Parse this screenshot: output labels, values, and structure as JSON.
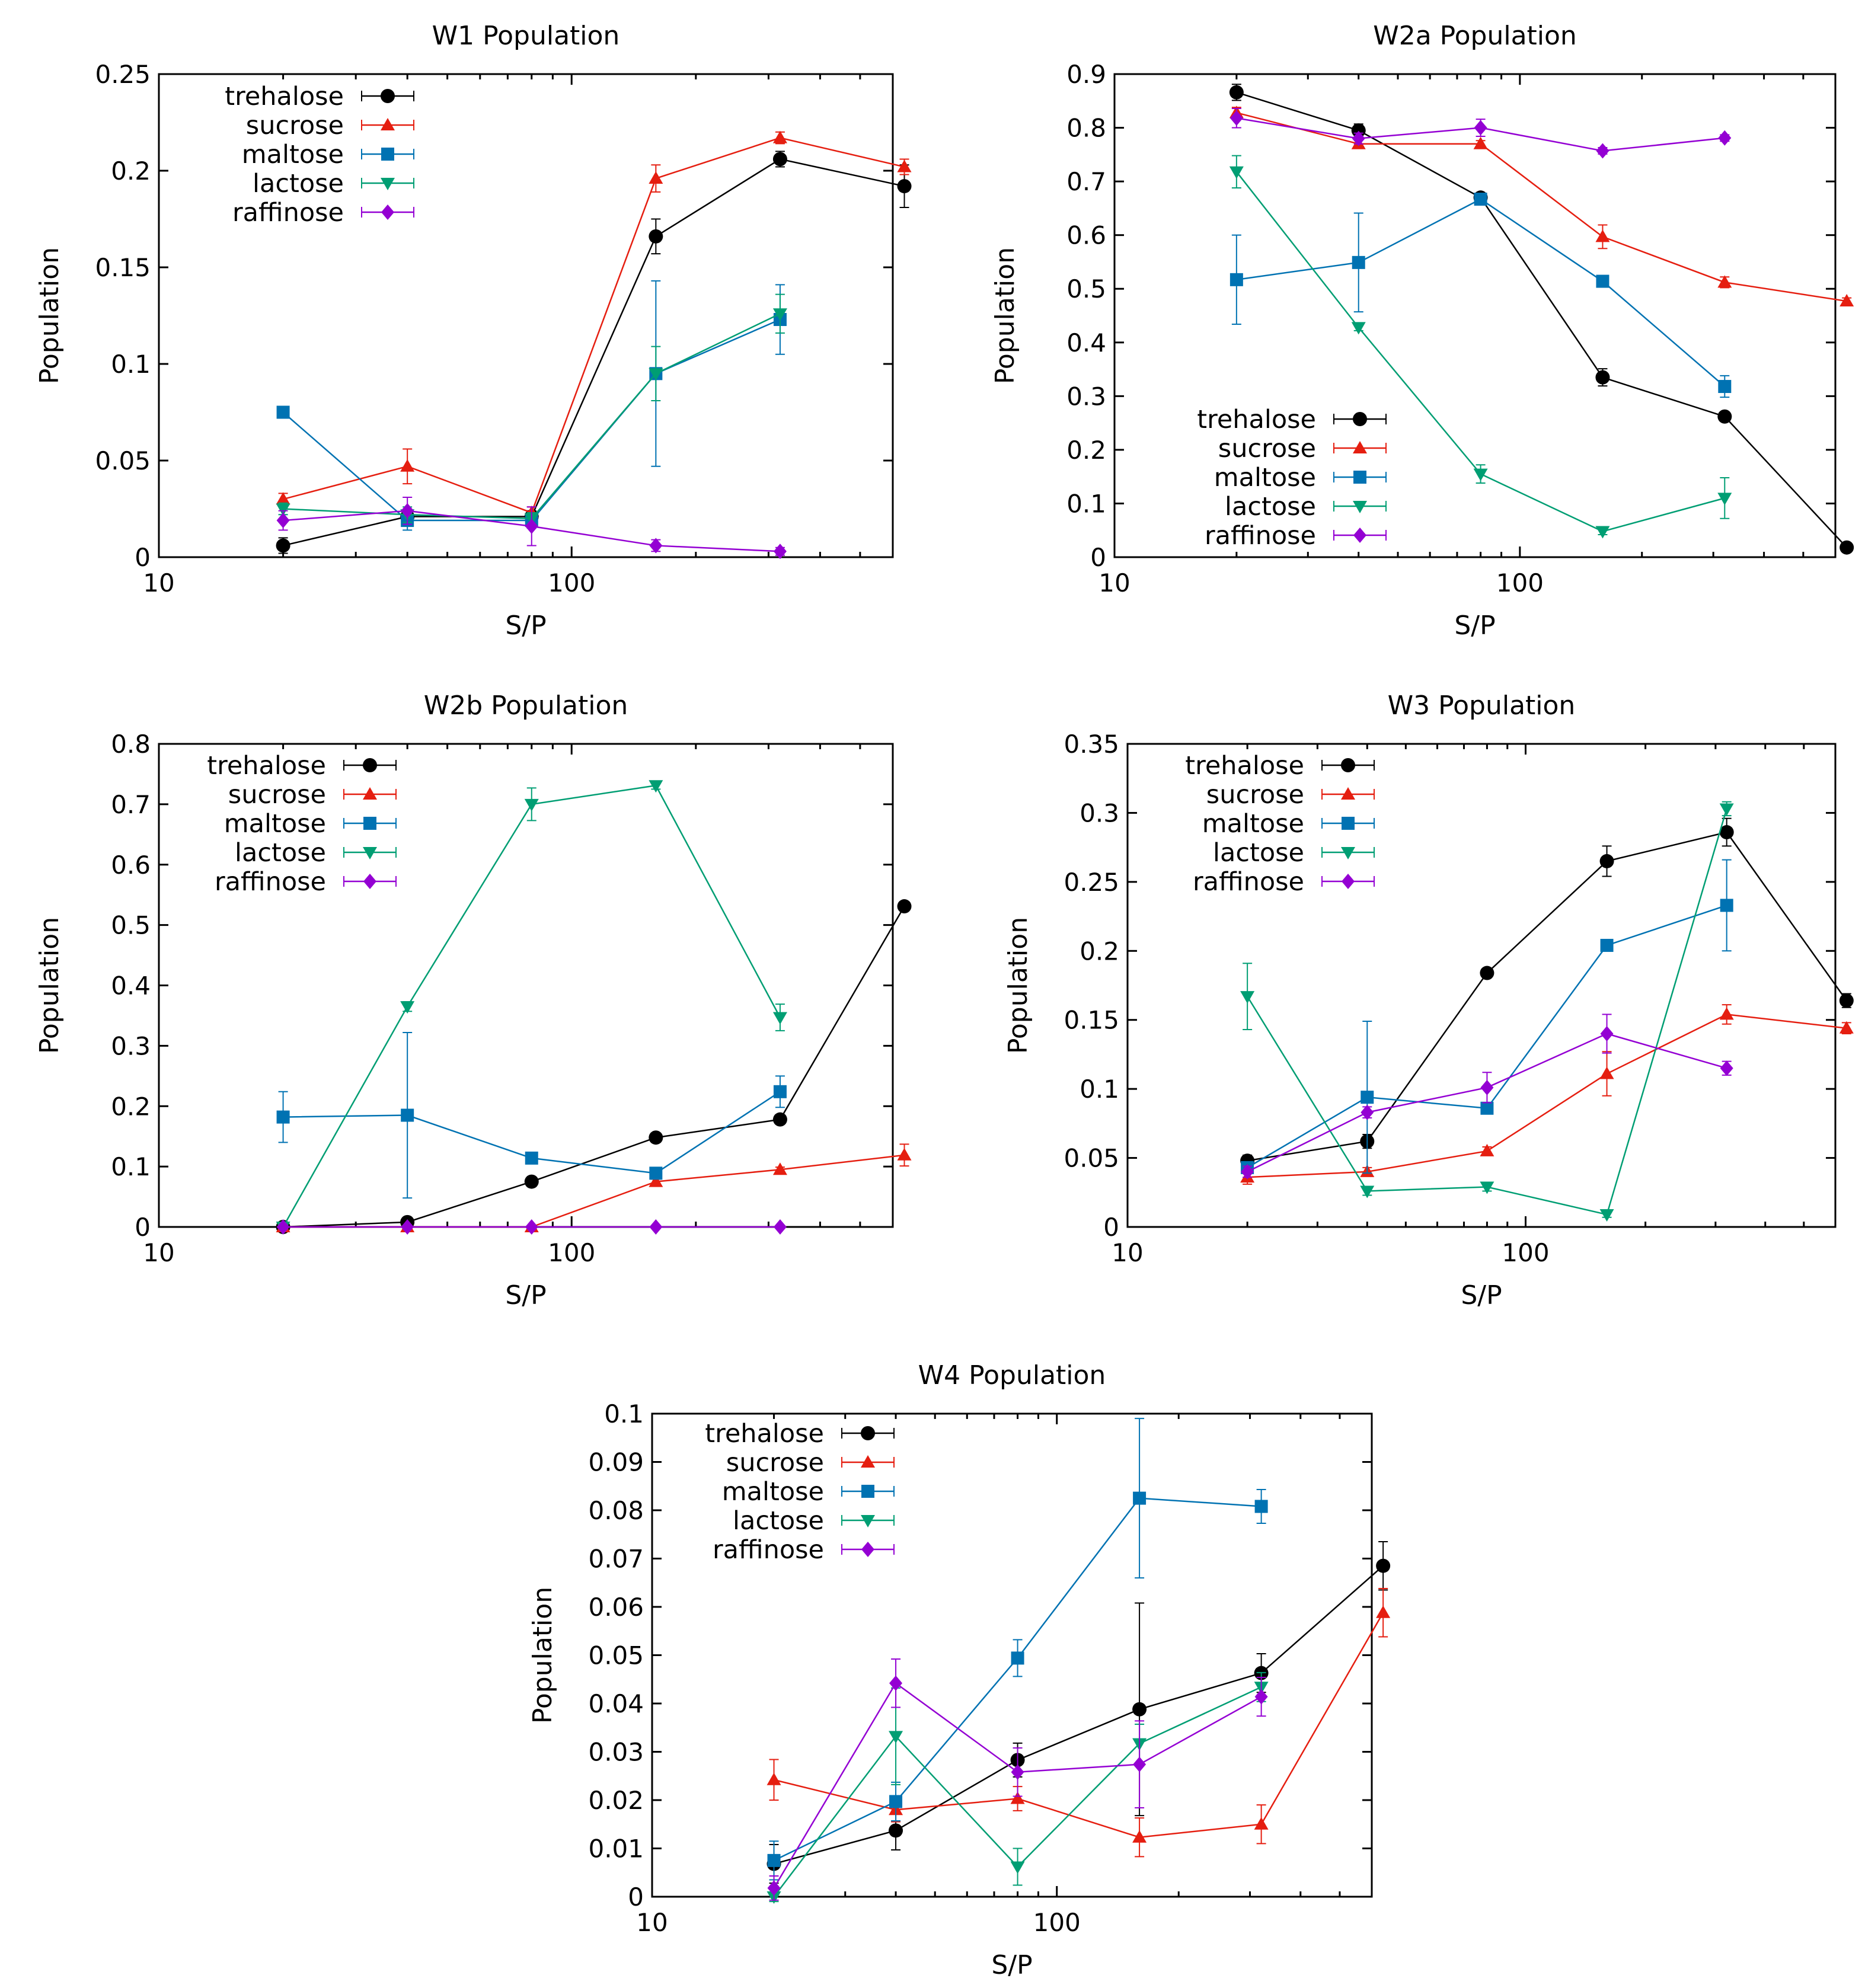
{
  "chart_data": [
    {
      "type": "line",
      "title": "W1 Population",
      "xlabel": "S/P",
      "ylabel": "Population",
      "xscale": "log",
      "xlim": [
        10,
        600
      ],
      "ylim": [
        0,
        0.25
      ],
      "yticks": [
        0,
        0.05,
        0.1,
        0.15,
        0.2,
        0.25
      ],
      "ytick_labels": [
        "0",
        "0.05",
        "0.1",
        "0.15",
        "0.2",
        "0.25"
      ],
      "xticks": [
        10,
        100
      ],
      "xtick_labels": [
        "10",
        "100"
      ],
      "legend_position": "top-left",
      "series": [
        {
          "name": "trehalose",
          "x": [
            20,
            40,
            80,
            160,
            320,
            640
          ],
          "values": [
            0.006,
            0.021,
            0.021,
            0.166,
            0.206,
            0.192
          ],
          "errors": [
            0.004,
            0.003,
            0.003,
            0.009,
            0.004,
            0.011
          ]
        },
        {
          "name": "sucrose",
          "x": [
            20,
            40,
            80,
            160,
            320,
            640
          ],
          "values": [
            0.03,
            0.047,
            0.023,
            0.196,
            0.217,
            0.202
          ],
          "errors": [
            0.003,
            0.009,
            0.003,
            0.007,
            0.003,
            0.004
          ]
        },
        {
          "name": "maltose",
          "x": [
            20,
            40,
            80,
            160,
            320
          ],
          "values": [
            0.075,
            0.019,
            0.019,
            0.095,
            0.123
          ],
          "errors": [
            0.003,
            0.005,
            0.004,
            0.048,
            0.018
          ]
        },
        {
          "name": "lactose",
          "x": [
            20,
            40,
            80,
            160,
            320
          ],
          "values": [
            0.025,
            0.022,
            0.02,
            0.095,
            0.126
          ],
          "errors": [
            0.003,
            0.004,
            0.003,
            0.014,
            0.01
          ]
        },
        {
          "name": "raffinose",
          "x": [
            20,
            40,
            80,
            160,
            320
          ],
          "values": [
            0.019,
            0.024,
            0.016,
            0.006,
            0.003
          ],
          "errors": [
            0.005,
            0.007,
            0.01,
            0.003,
            0.002
          ]
        }
      ]
    },
    {
      "type": "line",
      "title": "W2a Population",
      "xlabel": "S/P",
      "ylabel": "Population",
      "xscale": "log",
      "xlim": [
        10,
        600
      ],
      "ylim": [
        0,
        0.9
      ],
      "yticks": [
        0,
        0.1,
        0.2,
        0.3,
        0.4,
        0.5,
        0.6,
        0.7,
        0.8,
        0.9
      ],
      "ytick_labels": [
        "0",
        "0.1",
        "0.2",
        "0.3",
        "0.4",
        "0.5",
        "0.6",
        "0.7",
        "0.8",
        "0.9"
      ],
      "xticks": [
        10,
        100
      ],
      "xtick_labels": [
        "10",
        "100"
      ],
      "legend_position": "bottom-left",
      "series": [
        {
          "name": "trehalose",
          "x": [
            20,
            40,
            80,
            160,
            320,
            640
          ],
          "values": [
            0.866,
            0.795,
            0.67,
            0.335,
            0.262,
            0.018
          ],
          "errors": [
            0.015,
            0.012,
            0.006,
            0.016,
            0.006,
            0.003
          ]
        },
        {
          "name": "sucrose",
          "x": [
            20,
            40,
            80,
            160,
            320,
            640
          ],
          "values": [
            0.828,
            0.77,
            0.77,
            0.597,
            0.512,
            0.477
          ],
          "errors": [
            0.01,
            0.008,
            0.006,
            0.022,
            0.01,
            0.006
          ]
        },
        {
          "name": "maltose",
          "x": [
            20,
            40,
            80,
            160,
            320
          ],
          "values": [
            0.517,
            0.549,
            0.667,
            0.514,
            0.318
          ],
          "errors": [
            0.083,
            0.092,
            0.008,
            0.008,
            0.02
          ]
        },
        {
          "name": "lactose",
          "x": [
            20,
            40,
            80,
            160,
            320
          ],
          "values": [
            0.718,
            0.428,
            0.155,
            0.048,
            0.11
          ],
          "errors": [
            0.03,
            0.006,
            0.017,
            0.006,
            0.038
          ]
        },
        {
          "name": "raffinose",
          "x": [
            20,
            40,
            80,
            160,
            320
          ],
          "values": [
            0.818,
            0.78,
            0.8,
            0.757,
            0.781
          ],
          "errors": [
            0.018,
            0.01,
            0.016,
            0.006,
            0.006
          ]
        }
      ]
    },
    {
      "type": "line",
      "title": "W2b Population",
      "xlabel": "S/P",
      "ylabel": "Population",
      "xscale": "log",
      "xlim": [
        10,
        600
      ],
      "ylim": [
        0,
        0.8
      ],
      "yticks": [
        0,
        0.1,
        0.2,
        0.3,
        0.4,
        0.5,
        0.6,
        0.7,
        0.8
      ],
      "ytick_labels": [
        "0",
        "0.1",
        "0.2",
        "0.3",
        "0.4",
        "0.5",
        "0.6",
        "0.7",
        "0.8"
      ],
      "xticks": [
        10,
        100
      ],
      "xtick_labels": [
        "10",
        "100"
      ],
      "legend_position": "top-left",
      "series": [
        {
          "name": "trehalose",
          "x": [
            20,
            40,
            80,
            160,
            320,
            640
          ],
          "values": [
            0.0,
            0.008,
            0.075,
            0.148,
            0.178,
            0.531
          ],
          "errors": [
            0.001,
            0.003,
            0.005,
            0.006,
            0.006,
            0.006
          ]
        },
        {
          "name": "sucrose",
          "x": [
            20,
            40,
            80,
            160,
            320,
            640
          ],
          "values": [
            0.0,
            0.0,
            0.0,
            0.075,
            0.095,
            0.119
          ],
          "errors": [
            0.001,
            0.001,
            0.001,
            0.004,
            0.004,
            0.018
          ]
        },
        {
          "name": "maltose",
          "x": [
            20,
            40,
            80,
            160,
            320
          ],
          "values": [
            0.182,
            0.185,
            0.114,
            0.089,
            0.224
          ],
          "errors": [
            0.042,
            0.137,
            0.008,
            0.006,
            0.026
          ]
        },
        {
          "name": "lactose",
          "x": [
            20,
            40,
            80,
            160,
            320
          ],
          "values": [
            0.0,
            0.365,
            0.7,
            0.731,
            0.347
          ],
          "errors": [
            0.001,
            0.008,
            0.027,
            0.006,
            0.022
          ]
        },
        {
          "name": "raffinose",
          "x": [
            20,
            40,
            80,
            160,
            320
          ],
          "values": [
            0.0,
            0.0,
            0.0,
            0.0,
            0.0
          ],
          "errors": [
            0.001,
            0.001,
            0.001,
            0.001,
            0.001
          ]
        }
      ]
    },
    {
      "type": "line",
      "title": "W3 Population",
      "xlabel": "S/P",
      "ylabel": "Population",
      "xscale": "log",
      "xlim": [
        10,
        600
      ],
      "ylim": [
        0,
        0.35
      ],
      "yticks": [
        0,
        0.05,
        0.1,
        0.15,
        0.2,
        0.25,
        0.3,
        0.35
      ],
      "ytick_labels": [
        "0",
        "0.05",
        "0.1",
        "0.15",
        "0.2",
        "0.25",
        "0.3",
        "0.35"
      ],
      "xticks": [
        10,
        100
      ],
      "xtick_labels": [
        "10",
        "100"
      ],
      "legend_position": "top-left",
      "series": [
        {
          "name": "trehalose",
          "x": [
            20,
            40,
            80,
            160,
            320,
            640
          ],
          "values": [
            0.048,
            0.062,
            0.184,
            0.265,
            0.286,
            0.164
          ],
          "errors": [
            0.004,
            0.005,
            0.003,
            0.011,
            0.01,
            0.005
          ]
        },
        {
          "name": "sucrose",
          "x": [
            20,
            40,
            80,
            160,
            320,
            640
          ],
          "values": [
            0.036,
            0.04,
            0.055,
            0.111,
            0.154,
            0.144
          ],
          "errors": [
            0.005,
            0.003,
            0.003,
            0.016,
            0.007,
            0.004
          ]
        },
        {
          "name": "maltose",
          "x": [
            20,
            40,
            80,
            160,
            320
          ],
          "values": [
            0.043,
            0.094,
            0.086,
            0.204,
            0.233
          ],
          "errors": [
            0.004,
            0.055,
            0.003,
            0.004,
            0.033
          ]
        },
        {
          "name": "lactose",
          "x": [
            20,
            40,
            80,
            160,
            320
          ],
          "values": [
            0.167,
            0.026,
            0.029,
            0.009,
            0.303
          ],
          "errors": [
            0.024,
            0.003,
            0.003,
            0.002,
            0.005
          ]
        },
        {
          "name": "raffinose",
          "x": [
            20,
            40,
            80,
            160,
            320
          ],
          "values": [
            0.04,
            0.083,
            0.101,
            0.14,
            0.115
          ],
          "errors": [
            0.004,
            0.004,
            0.011,
            0.014,
            0.005
          ]
        }
      ]
    },
    {
      "type": "line",
      "title": "W4 Population",
      "xlabel": "S/P",
      "ylabel": "Population",
      "xscale": "log",
      "xlim": [
        10,
        600
      ],
      "ylim": [
        0,
        0.1
      ],
      "yticks": [
        0,
        0.01,
        0.02,
        0.03,
        0.04,
        0.05,
        0.06,
        0.07,
        0.08,
        0.09,
        0.1
      ],
      "ytick_labels": [
        "0",
        "0.01",
        "0.02",
        "0.03",
        "0.04",
        "0.05",
        "0.06",
        "0.07",
        "0.08",
        "0.09",
        "0.1"
      ],
      "xticks": [
        10,
        100
      ],
      "xtick_labels": [
        "10",
        "100"
      ],
      "legend_position": "top-left",
      "series": [
        {
          "name": "trehalose",
          "x": [
            20,
            40,
            80,
            160,
            320,
            640
          ],
          "values": [
            0.0068,
            0.0137,
            0.0283,
            0.0388,
            0.0463,
            0.0685
          ],
          "errors": [
            0.004,
            0.004,
            0.0035,
            0.022,
            0.004,
            0.005
          ]
        },
        {
          "name": "sucrose",
          "x": [
            20,
            40,
            80,
            160,
            320,
            640
          ],
          "values": [
            0.0242,
            0.018,
            0.0203,
            0.0123,
            0.015,
            0.0588
          ],
          "errors": [
            0.0042,
            0.0025,
            0.0025,
            0.004,
            0.004,
            0.005
          ]
        },
        {
          "name": "maltose",
          "x": [
            20,
            40,
            80,
            160,
            320
          ],
          "values": [
            0.0075,
            0.0197,
            0.0494,
            0.0825,
            0.0808
          ],
          "errors": [
            0.004,
            0.004,
            0.0038,
            0.0165,
            0.0035
          ]
        },
        {
          "name": "lactose",
          "x": [
            20,
            40,
            80,
            160,
            320
          ],
          "values": [
            0.0,
            0.0332,
            0.0062,
            0.0317,
            0.0434
          ],
          "errors": [
            0.001,
            0.01,
            0.0038,
            0.004,
            0.003
          ]
        },
        {
          "name": "raffinose",
          "x": [
            20,
            40,
            80,
            160,
            320
          ],
          "values": [
            0.0018,
            0.0442,
            0.0258,
            0.0274,
            0.0414
          ],
          "errors": [
            0.0025,
            0.005,
            0.005,
            0.009,
            0.004
          ]
        }
      ]
    }
  ],
  "series_styles": {
    "trehalose": {
      "color": "#000000",
      "marker": "circle"
    },
    "sucrose": {
      "color": "#e51e10",
      "marker": "triangle-up"
    },
    "maltose": {
      "color": "#0072b2",
      "marker": "square"
    },
    "lactose": {
      "color": "#009e73",
      "marker": "triangle-down"
    },
    "raffinose": {
      "color": "#9400d3",
      "marker": "diamond"
    }
  }
}
